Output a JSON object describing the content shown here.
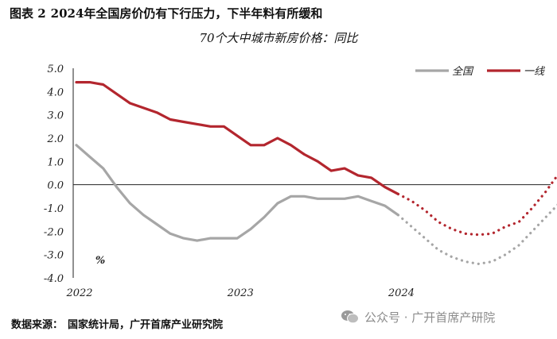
{
  "figure": {
    "label": "图表 2",
    "caption": "2024年全国房价仍有下行压力，下半年料有所缓和"
  },
  "source": {
    "label": "数据来源：",
    "text": "国家统计局，广开首席产业研究院"
  },
  "watermark": {
    "text": "公众号 · 广开首席产研院",
    "icon": "wechat-icon"
  },
  "chart_data": {
    "type": "line",
    "title": "70个大中城市新房价格：同比",
    "unit_label": "%",
    "ylim": [
      -4.0,
      5.0
    ],
    "y_ticks": [
      "5.0",
      "4.0",
      "3.0",
      "2.0",
      "1.0",
      "0.0",
      "-1.0",
      "-2.0",
      "-3.0",
      "-4.0"
    ],
    "x_ticks": [
      "2022",
      "2023",
      "2024"
    ],
    "grid": false,
    "legend_position": "top-right",
    "zero_line": true,
    "months": [
      "2022-01",
      "2022-02",
      "2022-03",
      "2022-04",
      "2022-05",
      "2022-06",
      "2022-07",
      "2022-08",
      "2022-09",
      "2022-10",
      "2022-11",
      "2022-12",
      "2023-01",
      "2023-02",
      "2023-03",
      "2023-04",
      "2023-05",
      "2023-06",
      "2023-07",
      "2023-08",
      "2023-09",
      "2023-10",
      "2023-11",
      "2023-12",
      "2024-01",
      "2024-02",
      "2024-03",
      "2024-04",
      "2024-05",
      "2024-06",
      "2024-07",
      "2024-08",
      "2024-09",
      "2024-10",
      "2024-11",
      "2024-12"
    ],
    "series": [
      {
        "name": "全国",
        "color": "#a6a6a6",
        "actual": [
          1.7,
          1.2,
          0.7,
          -0.1,
          -0.8,
          -1.3,
          -1.7,
          -2.1,
          -2.3,
          -2.4,
          -2.3,
          -2.3,
          -2.3,
          -1.9,
          -1.4,
          -0.8,
          -0.5,
          -0.5,
          -0.6,
          -0.6,
          -0.6,
          -0.5,
          -0.7,
          -0.9,
          -1.3
        ],
        "forecast": [
          -1.3,
          -1.8,
          -2.3,
          -2.8,
          -3.1,
          -3.3,
          -3.4,
          -3.3,
          -3.0,
          -2.6,
          -2.0,
          -1.4,
          -0.8
        ]
      },
      {
        "name": "一线",
        "color": "#b3262e",
        "actual": [
          4.4,
          4.4,
          4.3,
          3.9,
          3.5,
          3.3,
          3.1,
          2.8,
          2.7,
          2.6,
          2.5,
          2.5,
          2.1,
          1.7,
          1.7,
          2.0,
          1.7,
          1.3,
          1.0,
          0.6,
          0.7,
          0.4,
          0.3,
          -0.1,
          -0.4
        ],
        "forecast": [
          -0.4,
          -0.7,
          -1.1,
          -1.6,
          -1.9,
          -2.1,
          -2.15,
          -2.1,
          -1.8,
          -1.6,
          -1.0,
          -0.3,
          0.5
        ]
      }
    ]
  }
}
